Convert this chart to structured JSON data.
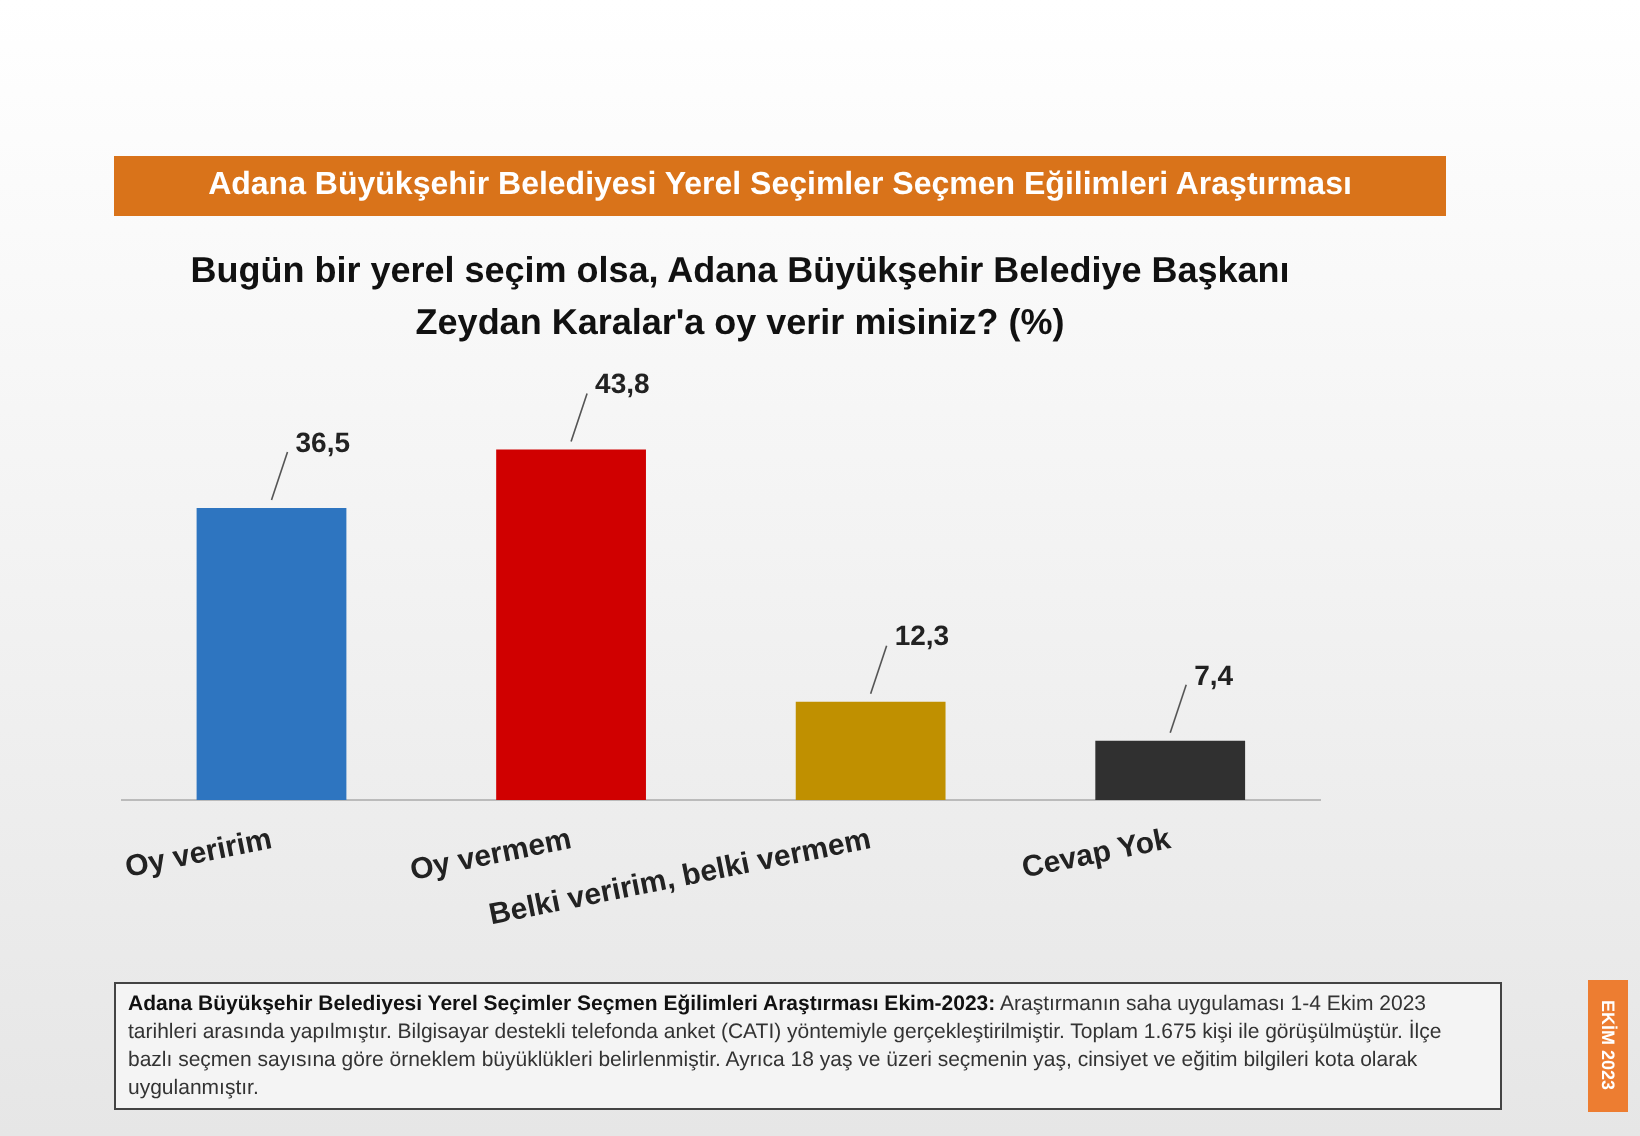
{
  "chart_data": {
    "type": "bar",
    "title": "Adana Büyükşehir Belediyesi Yerel Seçimler Seçmen Eğilimleri Araştırması",
    "subtitle": "Bugün bir yerel seçim olsa, Adana Büyükşehir Belediye Başkanı Zeydan Karalar'a oy verir misiniz? (%)",
    "categories": [
      "Oy veririm",
      "Oy vermem",
      "Belki veririm, belki vermem",
      "Cevap Yok"
    ],
    "values": [
      36.5,
      43.8,
      12.3,
      7.4
    ],
    "colors": [
      "#2e75c0",
      "#d00000",
      "#c09000",
      "#303030"
    ],
    "value_labels": [
      "36,5",
      "43,8",
      "12,3",
      "7,4"
    ],
    "annotations": [
      "Adana Büyükşehir Belediyesi Yerel Seçimler Seçmen Eğilimleri Araştırması Ekim-2023: Araştırmanın saha uygulaması 1-4 Ekim 2023 tarihleri arasında yapılmıştır. Bilgisayar destekli telefonda anket (CATI) yöntemiyle gerçekleştirilmiştir. Toplam 1.675 kişi ile görüşülmüştür. İlçe bazlı seçmen sayısına göre örneklem büyüklükleri belirlenmiştir. Ayrıca 18 yaş ve üzeri seçmenin yaş, cinsiyet ve eğitim bilgileri kota olarak uygulanmıştır.",
      "EKİM 2023"
    ],
    "grid": false,
    "legend": false
  }
}
